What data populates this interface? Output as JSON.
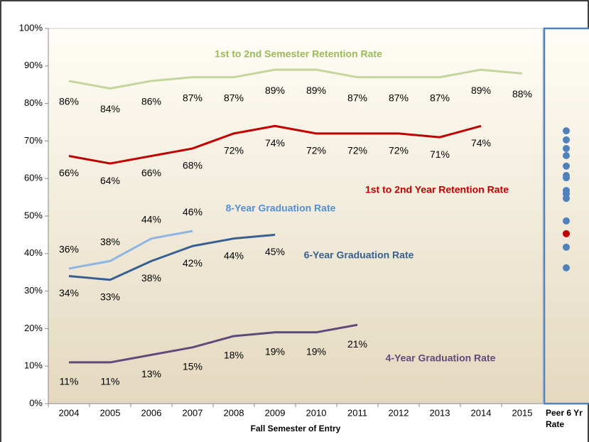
{
  "chart_data": {
    "type": "line",
    "x_label": "Fall Semester of Entry",
    "categories": [
      "2004",
      "2005",
      "2006",
      "2007",
      "2008",
      "2009",
      "2010",
      "2011",
      "2012",
      "2013",
      "2014",
      "2015"
    ],
    "ylim": [
      0,
      100
    ],
    "yticks": [
      {
        "value": 0,
        "label": "0%"
      },
      {
        "value": 10,
        "label": "10%"
      },
      {
        "value": 20,
        "label": "20%"
      },
      {
        "value": 30,
        "label": "30%"
      },
      {
        "value": 40,
        "label": "40%"
      },
      {
        "value": 50,
        "label": "50%"
      },
      {
        "value": 60,
        "label": "60%"
      },
      {
        "value": 70,
        "label": "70%"
      },
      {
        "value": 80,
        "label": "80%"
      },
      {
        "value": 90,
        "label": "90%"
      },
      {
        "value": 100,
        "label": "100%"
      }
    ],
    "grid": false,
    "series": [
      {
        "name": "1st to 2nd Semester Retention Rate",
        "color": "#c3d69b",
        "values": [
          86,
          84,
          86,
          87,
          87,
          89,
          89,
          87,
          87,
          87,
          89,
          88
        ],
        "value_labels": [
          "86%",
          "84%",
          "86%",
          "87%",
          "87%",
          "89%",
          "89%",
          "87%",
          "87%",
          "87%",
          "89%",
          "88%"
        ]
      },
      {
        "name": "1st to 2nd Year Retention Rate",
        "color": "#c00000",
        "values": [
          66,
          64,
          66,
          68,
          72,
          74,
          72,
          72,
          72,
          71,
          74,
          null
        ],
        "value_labels": [
          "66%",
          "64%",
          "66%",
          "68%",
          "72%",
          "74%",
          "72%",
          "72%",
          "72%",
          "71%",
          "74%",
          null
        ]
      },
      {
        "name": "8-Year Graduation Rate",
        "color": "#8db4e2",
        "values": [
          36,
          38,
          44,
          46,
          null,
          null,
          null,
          null,
          null,
          null,
          null,
          null
        ],
        "value_labels": [
          "36%",
          "38%",
          "44%",
          "46%",
          null,
          null,
          null,
          null,
          null,
          null,
          null,
          null
        ]
      },
      {
        "name": "6-Year Graduation Rate",
        "color": "#376092",
        "values": [
          34,
          33,
          38,
          42,
          44,
          45,
          null,
          null,
          null,
          null,
          null,
          null
        ],
        "value_labels": [
          "34%",
          "33%",
          "38%",
          "42%",
          "44%",
          "45%",
          null,
          null,
          null,
          null,
          null,
          null
        ]
      },
      {
        "name": "4-Year Graduation Rate",
        "color": "#604a7b",
        "values": [
          11,
          11,
          13,
          15,
          18,
          19,
          19,
          21,
          null,
          null,
          null,
          null
        ],
        "value_labels": [
          "11%",
          "11%",
          "13%",
          "15%",
          "18%",
          "19%",
          "19%",
          "21%",
          null,
          null,
          null,
          null
        ]
      }
    ],
    "peer": {
      "label_lines": [
        "Peer 6 Yr",
        "Rate"
      ],
      "values": [
        72.7,
        70.3,
        68.0,
        66.1,
        63.3,
        60.8,
        60.2,
        56.8,
        55.9,
        54.7,
        48.7,
        45.3,
        41.7,
        36.2
      ],
      "colors": [
        "#4f81bd",
        "#4f81bd",
        "#4f81bd",
        "#4f81bd",
        "#4f81bd",
        "#4f81bd",
        "#4f81bd",
        "#4f81bd",
        "#4f81bd",
        "#4f81bd",
        "#4f81bd",
        "#c00000",
        "#4f81bd",
        "#4f81bd"
      ]
    }
  }
}
